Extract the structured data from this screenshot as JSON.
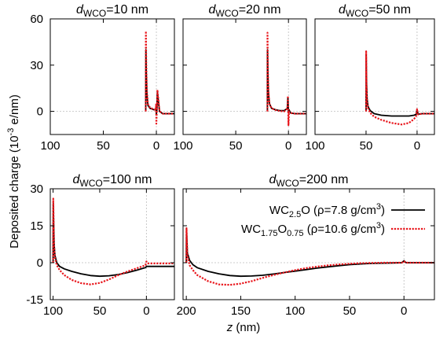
{
  "chart_data": {
    "type": "line",
    "ylabel_parts": [
      "Deposited charge (10",
      "-3",
      " e/nm)"
    ],
    "xlabel_parts": [
      "z",
      " (nm)"
    ],
    "legend_placement": "top-right of the dWCO=200 nm panel",
    "colors": {
      "WC2.5O": "#000000",
      "WC1.75O0.75": "#e8141a"
    },
    "legend": [
      {
        "key": "WC2.5O",
        "parts": [
          "WC",
          "2.5",
          "O (ρ=7.8 g/cm",
          "3",
          ")"
        ],
        "style": "solid"
      },
      {
        "key": "WC1.75O0.75",
        "parts": [
          "WC",
          "1.75",
          "O",
          "0.75",
          " (ρ=10.6 g/cm",
          "3",
          ")"
        ],
        "style": "dotted"
      }
    ],
    "panels": [
      {
        "title_parts": [
          "d",
          "WCO",
          "=10 nm"
        ],
        "xlim": [
          100,
          -17
        ],
        "ylim": [
          -15,
          60
        ],
        "xticks": [
          100,
          50,
          0
        ],
        "yticks": [
          0,
          30,
          60
        ],
        "series": [
          {
            "key": "WC2.5O",
            "x": [
              10,
              9.9,
              9.5,
              9,
              8,
              6,
              4,
              2,
              1,
              0.5,
              0.2,
              0,
              -0.5,
              -1,
              -3,
              -6,
              -10,
              -17
            ],
            "y": [
              0,
              40,
              25,
              12,
              4,
              2,
              1.5,
              1,
              1,
              2,
              4,
              -2,
              1,
              12,
              0,
              -1.5,
              -1.5,
              -1.5
            ]
          },
          {
            "key": "WC1.75O0.75",
            "x": [
              10,
              9.9,
              9.5,
              9,
              8,
              6,
              4,
              2,
              1,
              0.5,
              0.2,
              0,
              -0.5,
              -1,
              -3,
              -6,
              -10,
              -17
            ],
            "y": [
              0,
              52,
              30,
              14,
              5,
              2.5,
              1.8,
              1.2,
              1,
              2,
              5,
              -8,
              1,
              14,
              0,
              -1.5,
              -1.5,
              -1.5
            ]
          }
        ]
      },
      {
        "title_parts": [
          "d",
          "WCO",
          "=20 nm"
        ],
        "xlim": [
          100,
          -17
        ],
        "ylim": [
          -15,
          60
        ],
        "xticks": [
          100,
          50,
          0
        ],
        "yticks": [
          0,
          30,
          60
        ],
        "series": [
          {
            "key": "WC2.5O",
            "x": [
              20,
              19.9,
              19.5,
              19,
              18,
              16,
              12,
              8,
              4,
              1,
              0.5,
              0,
              -0.5,
              -2,
              -6,
              -17
            ],
            "y": [
              0,
              40,
              24,
              12,
              5,
              2,
              1,
              0.5,
              0.5,
              2,
              9,
              0,
              1,
              -1,
              -1.5,
              -1.5
            ]
          },
          {
            "key": "WC1.75O0.75",
            "x": [
              20,
              19.9,
              19.5,
              19,
              18,
              16,
              12,
              8,
              4,
              1,
              0.5,
              0,
              -0.5,
              -2,
              -6,
              -17
            ],
            "y": [
              0,
              51,
              28,
              13,
              5,
              2,
              0.8,
              0.2,
              0,
              2,
              10,
              -9,
              0,
              -1,
              -1.5,
              -1.5
            ]
          }
        ]
      },
      {
        "title_parts": [
          "d",
          "WCO",
          "=50 nm"
        ],
        "xlim": [
          100,
          -17
        ],
        "ylim": [
          -15,
          60
        ],
        "xticks": [
          100,
          50,
          0
        ],
        "yticks": [
          0,
          30,
          60
        ],
        "series": [
          {
            "key": "WC2.5O",
            "x": [
              50,
              49.9,
              49.5,
              49,
              48,
              46,
              42,
              35,
              25,
              15,
              8,
              3,
              1,
              0,
              -1,
              -5,
              -10,
              -17
            ],
            "y": [
              0,
              37,
              18,
              8,
              3,
              0.5,
              -1.5,
              -2.5,
              -3,
              -3,
              -3,
              -2.5,
              -2,
              1,
              -1.8,
              -1.5,
              -1.5,
              -1.5
            ]
          },
          {
            "key": "WC1.75O0.75",
            "x": [
              50,
              49.9,
              49.5,
              49,
              48,
              46,
              42,
              35,
              25,
              15,
              8,
              3,
              1,
              0,
              -1,
              -5,
              -10,
              -17
            ],
            "y": [
              0,
              39,
              16,
              6,
              2,
              -1,
              -3.5,
              -5.5,
              -7.5,
              -8.5,
              -7.5,
              -5,
              -3,
              1.5,
              -2,
              -1.5,
              -1.5,
              -1.5
            ]
          }
        ]
      },
      {
        "title_parts": [
          "d",
          "WCO",
          "=100 nm"
        ],
        "xlim": [
          103,
          -30
        ],
        "ylim": [
          -15,
          30
        ],
        "xticks": [
          100,
          50,
          0
        ],
        "yticks": [
          -15,
          0,
          15,
          30
        ],
        "series": [
          {
            "key": "WC2.5O",
            "x": [
              100,
              99.8,
              99,
              98,
              96,
              93,
              88,
              80,
              70,
              60,
              50,
              40,
              30,
              20,
              10,
              3,
              1,
              0,
              -2,
              -10,
              -20,
              -30
            ],
            "y": [
              0,
              24,
              8,
              3,
              0,
              -1.5,
              -2.5,
              -3.5,
              -4.5,
              -5.2,
              -5.5,
              -5.3,
              -4.8,
              -4,
              -3,
              -2.2,
              -2,
              -1.5,
              -1.5,
              -1.5,
              -1.5,
              -1.5
            ]
          },
          {
            "key": "WC1.75O0.75",
            "x": [
              100,
              99.8,
              99,
              98,
              96,
              93,
              88,
              80,
              70,
              60,
              50,
              40,
              30,
              20,
              10,
              3,
              1,
              0,
              -2,
              -10,
              -20,
              -30
            ],
            "y": [
              0,
              26,
              7,
              2,
              -1,
              -3,
              -5,
              -7,
              -8.3,
              -8.8,
              -8.2,
              -6.8,
              -5,
              -3.5,
              -2.2,
              -1.3,
              -1,
              0.5,
              -0.3,
              -0.3,
              -0.3,
              -0.3
            ]
          }
        ]
      },
      {
        "title_parts": [
          "d",
          "WCO",
          "=200 nm"
        ],
        "xlim": [
          203,
          -28
        ],
        "ylim": [
          -15,
          30
        ],
        "xticks": [
          200,
          150,
          100,
          50,
          0
        ],
        "yticks": [
          -15,
          0,
          15,
          30
        ],
        "series": [
          {
            "key": "WC2.5O",
            "x": [
              200,
              199.8,
              199,
              197,
              194,
              190,
              180,
              170,
              160,
              150,
              140,
              130,
              120,
              110,
              100,
              90,
              80,
              70,
              60,
              50,
              40,
              30,
              20,
              10,
              2,
              0,
              -2,
              -10,
              -28
            ],
            "y": [
              0,
              14,
              4,
              1,
              -0.8,
              -2,
              -3.5,
              -4.5,
              -5.2,
              -5.5,
              -5.4,
              -5.1,
              -4.6,
              -4,
              -3.4,
              -2.8,
              -2.2,
              -1.7,
              -1.2,
              -0.8,
              -0.5,
              -0.3,
              -0.2,
              -0.1,
              0,
              0.8,
              0,
              0,
              0
            ]
          },
          {
            "key": "WC1.75O0.75",
            "x": [
              200,
              199.8,
              199,
              197,
              194,
              190,
              180,
              170,
              160,
              150,
              140,
              130,
              120,
              110,
              100,
              90,
              80,
              70,
              60,
              50,
              40,
              30,
              20,
              10,
              2,
              0,
              -2,
              -10,
              -28
            ],
            "y": [
              0,
              14,
              3,
              -1,
              -3,
              -5,
              -7.5,
              -8.8,
              -9,
              -8.5,
              -7.5,
              -6.2,
              -5,
              -4,
              -3,
              -2.2,
              -1.6,
              -1.1,
              -0.7,
              -0.4,
              -0.2,
              -0.1,
              0,
              0,
              0,
              0.5,
              0,
              0,
              0
            ]
          }
        ]
      }
    ]
  }
}
